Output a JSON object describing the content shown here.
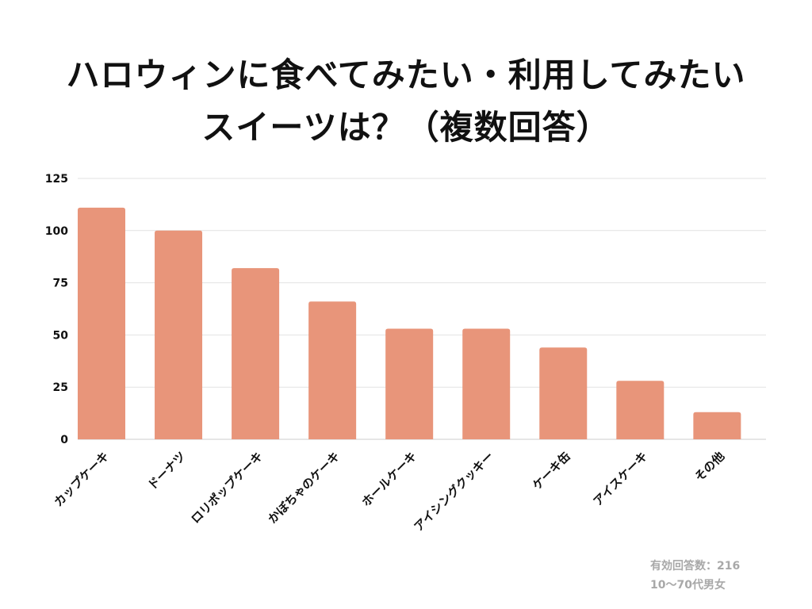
{
  "title_line1": "ハロウィンに食べてみたい・利用してみたい",
  "title_line2": "スイーツは？（複数回答）",
  "notes": {
    "respondents": "有効回答数：216",
    "demographic": "10〜70代男女"
  },
  "colors": {
    "bar": "#E8957A",
    "grid": "#e2e2e2",
    "axis": "#cccccc",
    "text": "#111111"
  },
  "chart_data": {
    "type": "bar",
    "title": "ハロウィンに食べてみたい・利用してみたいスイーツは？（複数回答）",
    "categories": [
      "カップケーキ",
      "ドーナツ",
      "ロリポップケーキ",
      "かぼちゃのケーキ",
      "ホールケーキ",
      "アイシングクッキー",
      "ケーキ缶",
      "アイスケーキ",
      "その他"
    ],
    "values": [
      111,
      100,
      82,
      66,
      53,
      53,
      44,
      28,
      13
    ],
    "yticks": [
      "0",
      "25",
      "50",
      "75",
      "100",
      "125"
    ],
    "ylim": [
      0,
      125
    ],
    "xlabel": "",
    "ylabel": "",
    "grid": true,
    "legend": "none"
  }
}
